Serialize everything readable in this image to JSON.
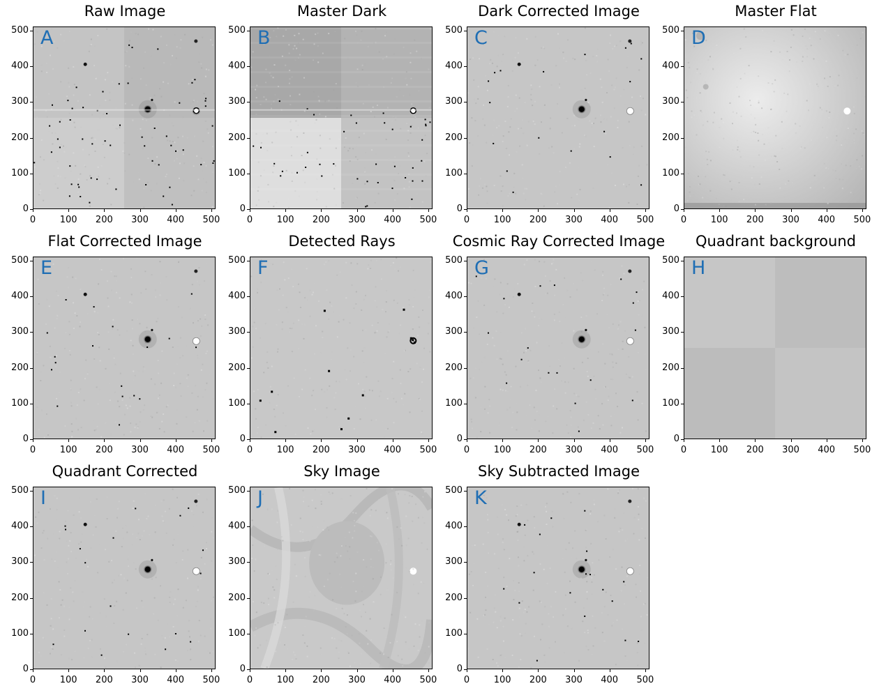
{
  "panels": [
    {
      "title": "Raw Image",
      "label": "A",
      "kind": "raw"
    },
    {
      "title": "Master Dark",
      "label": "B",
      "kind": "dark"
    },
    {
      "title": "Dark Corrected Image",
      "label": "C",
      "kind": "star"
    },
    {
      "title": "Master Flat",
      "label": "D",
      "kind": "flat"
    },
    {
      "title": "Flat Corrected Image",
      "label": "E",
      "kind": "star"
    },
    {
      "title": "Detected Rays",
      "label": "F",
      "kind": "rays"
    },
    {
      "title": "Cosmic Ray Corrected Image",
      "label": "G",
      "kind": "star"
    },
    {
      "title": "Quadrant background",
      "label": "H",
      "kind": "quad"
    },
    {
      "title": "Quadrant Corrected",
      "label": "I",
      "kind": "star"
    },
    {
      "title": "Sky Image",
      "label": "J",
      "kind": "sky"
    },
    {
      "title": "Sky Subtracted Image",
      "label": "K",
      "kind": "star"
    }
  ],
  "axes": {
    "x_ticks": [
      "0",
      "100",
      "200",
      "300",
      "400",
      "500"
    ],
    "y_ticks": [
      "500",
      "400",
      "300",
      "200",
      "100",
      "0"
    ],
    "range": [
      0,
      512
    ]
  },
  "colors": {
    "label": "#1f6eb4"
  }
}
